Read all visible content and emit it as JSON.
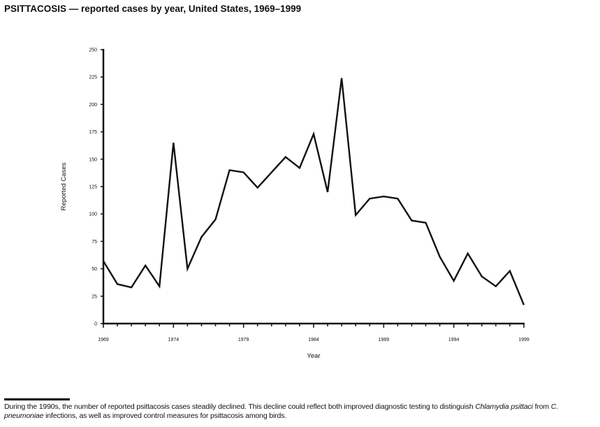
{
  "chart_data": {
    "type": "line",
    "title": "PSITTACOSIS — reported cases by year, United States, 1969–1999",
    "xlabel": "Year",
    "ylabel": "Reported Cases",
    "xlim": [
      1969,
      1999
    ],
    "ylim": [
      0,
      250
    ],
    "x_tick_labels": [
      "1969",
      "1974",
      "1979",
      "1984",
      "1989",
      "1994",
      "1999"
    ],
    "y_tick_labels": [
      "0",
      "25",
      "50",
      "75",
      "100",
      "125",
      "150",
      "175",
      "200",
      "225",
      "250"
    ],
    "grid": false,
    "color": "#111111",
    "x": [
      1969,
      1970,
      1971,
      1972,
      1973,
      1974,
      1975,
      1976,
      1977,
      1978,
      1979,
      1980,
      1981,
      1982,
      1983,
      1984,
      1985,
      1986,
      1987,
      1988,
      1989,
      1990,
      1991,
      1992,
      1993,
      1994,
      1995,
      1996,
      1997,
      1998,
      1999
    ],
    "y": [
      57,
      36,
      33,
      53,
      34,
      165,
      50,
      79,
      95,
      140,
      138,
      124,
      138,
      152,
      142,
      173,
      120,
      224,
      99,
      114,
      116,
      114,
      94,
      92,
      61,
      39,
      64,
      43,
      34,
      48,
      17
    ]
  },
  "footnote": {
    "segments": [
      {
        "text": "During the 1990s, the number of reported psittacosis cases steadily declined. This decline could reflect both improved diagnostic testing to distinguish ",
        "italic": false
      },
      {
        "text": "Chlamydia psittaci",
        "italic": true
      },
      {
        "text": "  from ",
        "italic": false
      },
      {
        "text": "C. pneumoniae",
        "italic": true
      },
      {
        "text": "  infections, as well as improved control measures for psittacosis among birds.",
        "italic": false
      }
    ]
  }
}
